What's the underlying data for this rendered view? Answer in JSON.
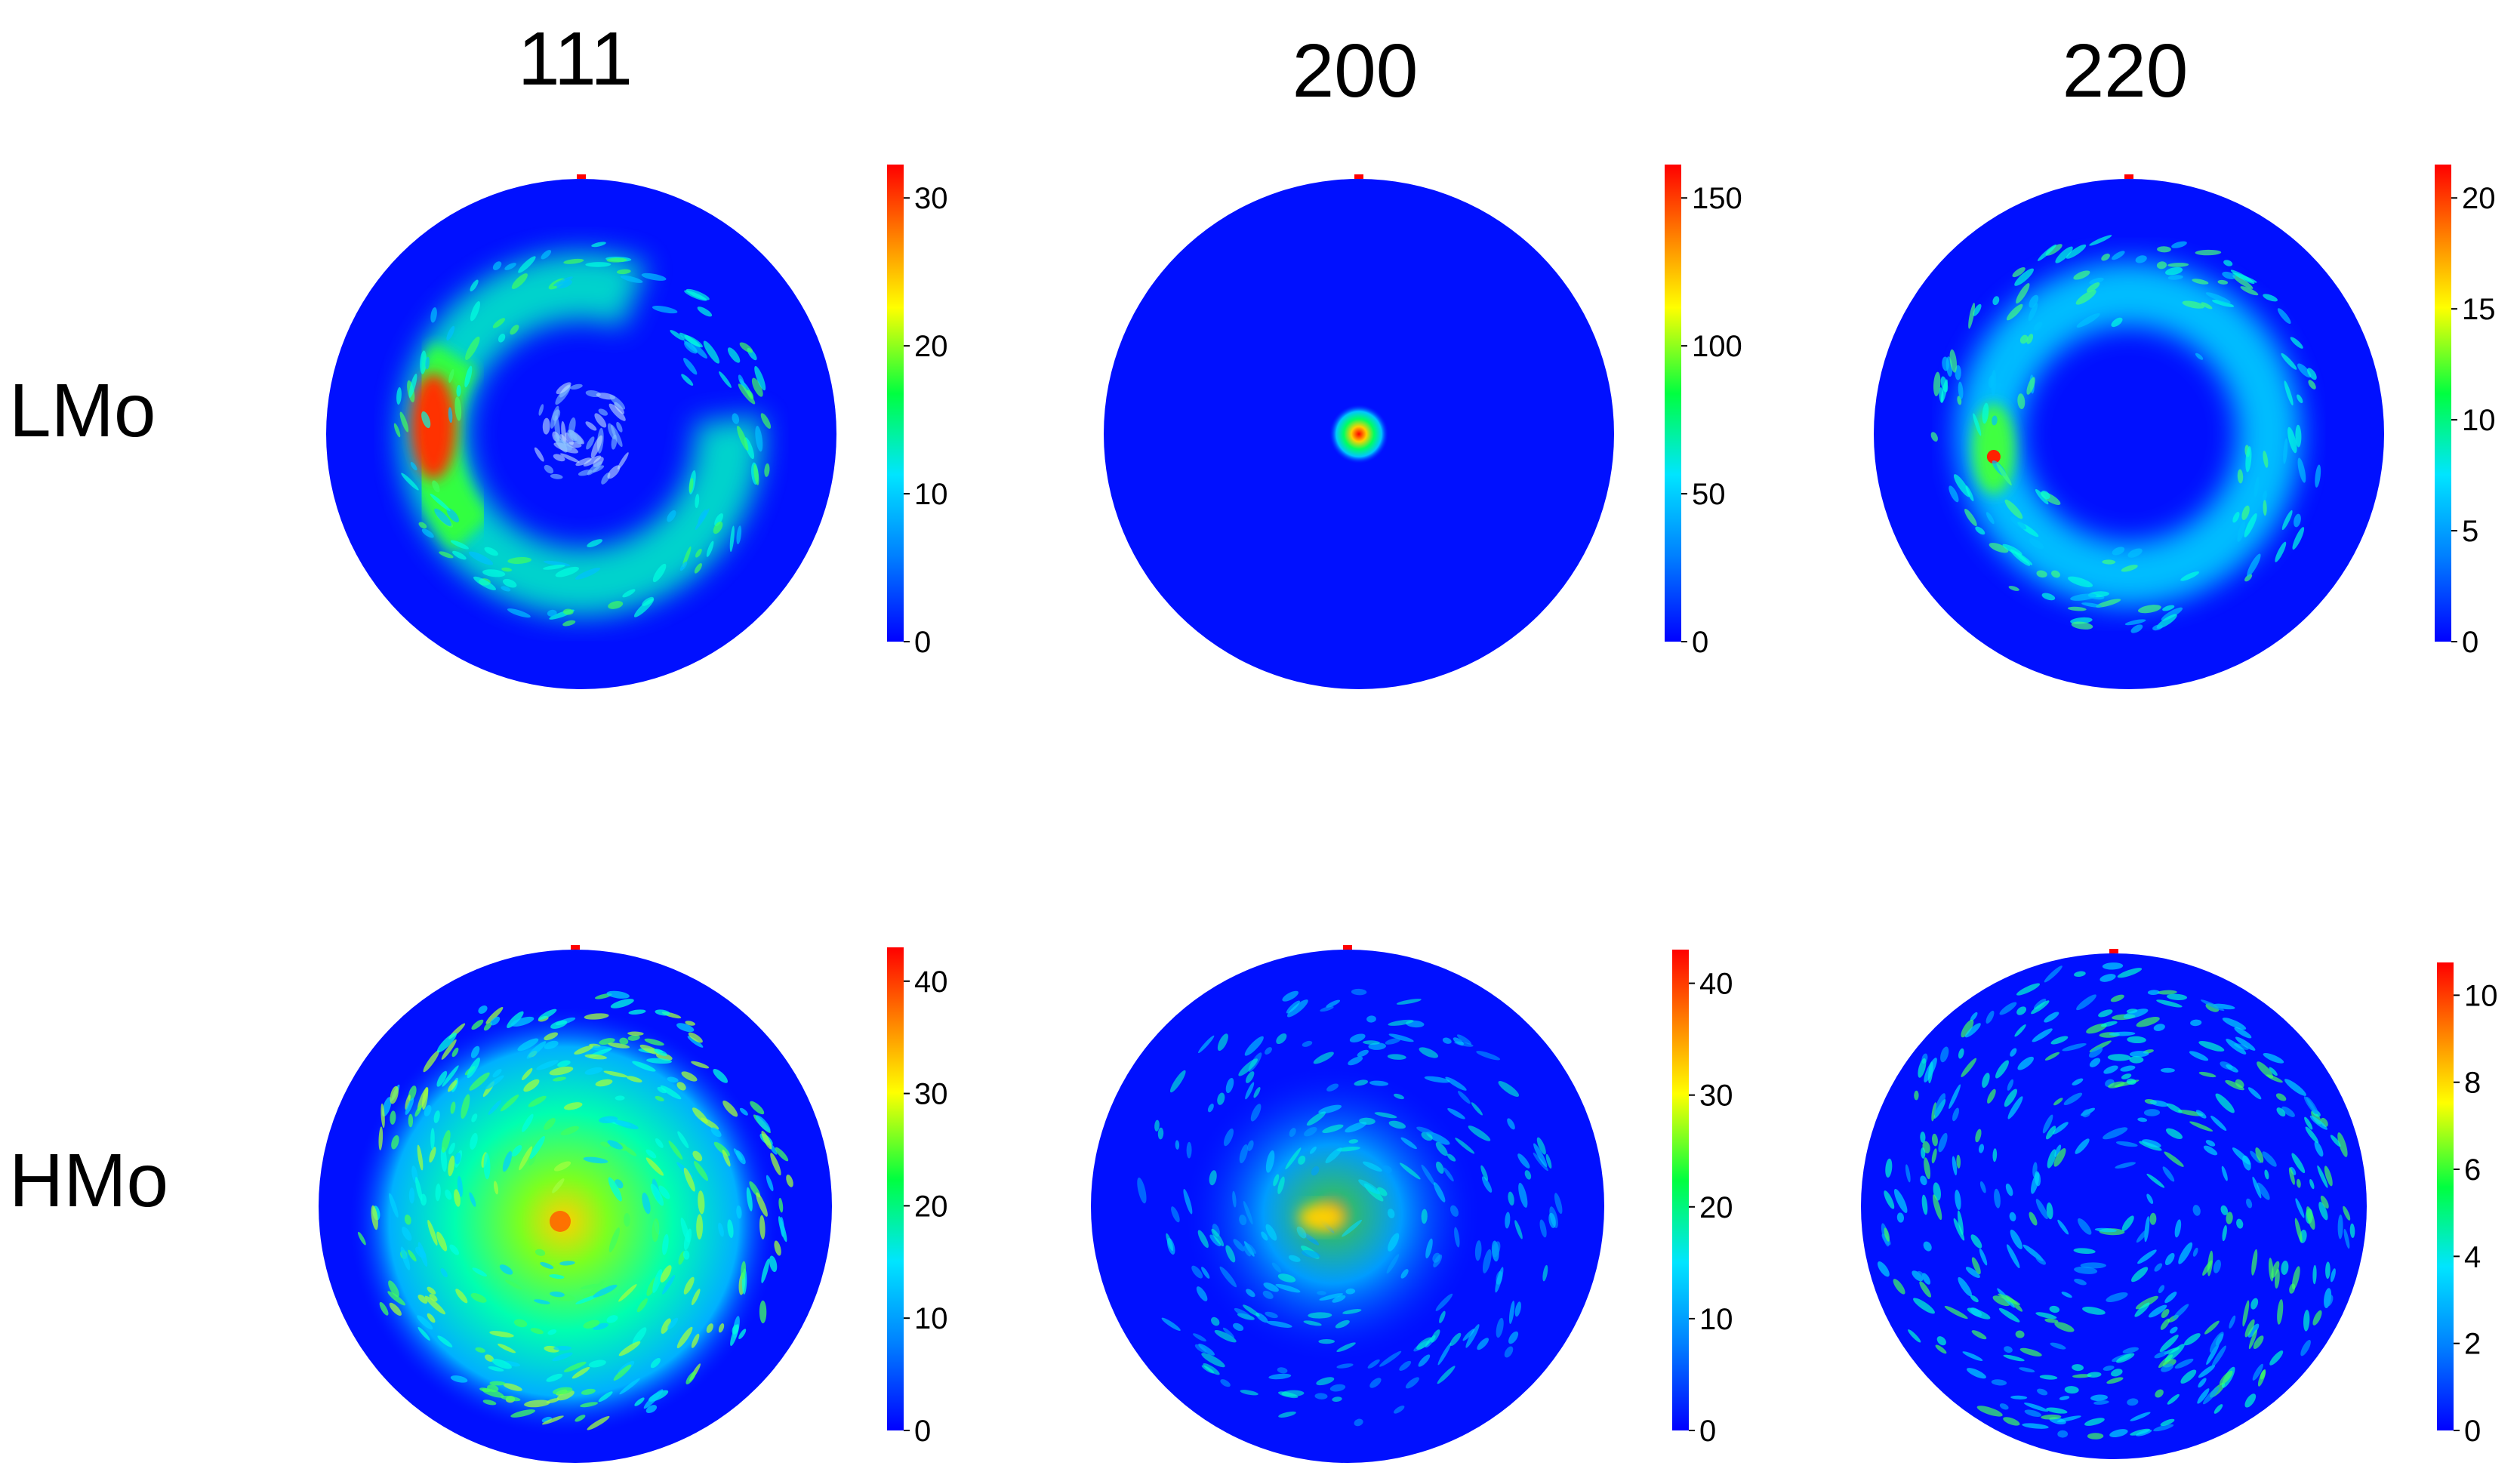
{
  "columns": [
    "111",
    "200",
    "220"
  ],
  "rows": [
    "LMo",
    "HMo"
  ],
  "colormap": [
    "#0000ff",
    "#0080ff",
    "#00e5ff",
    "#00ff40",
    "#ffff00",
    "#ff8000",
    "#ff0000"
  ],
  "panels": [
    {
      "row": "LMo",
      "column": "111",
      "pattern": "partial-ring",
      "colorbar_ticks": [
        "0",
        "10",
        "20",
        "30"
      ]
    },
    {
      "row": "LMo",
      "column": "200",
      "pattern": "center-spot",
      "colorbar_ticks": [
        "0",
        "50",
        "100",
        "150"
      ]
    },
    {
      "row": "LMo",
      "column": "220",
      "pattern": "ring",
      "colorbar_ticks": [
        "0",
        "5",
        "10",
        "15",
        "20"
      ]
    },
    {
      "row": "HMo",
      "column": "111",
      "pattern": "center-diffuse-strong",
      "colorbar_ticks": [
        "0",
        "10",
        "20",
        "30",
        "40"
      ]
    },
    {
      "row": "HMo",
      "column": "200",
      "pattern": "center-diffuse",
      "colorbar_ticks": [
        "0",
        "10",
        "20",
        "30",
        "40"
      ]
    },
    {
      "row": "HMo",
      "column": "220",
      "pattern": "uniform-speckle",
      "colorbar_ticks": [
        "0",
        "2",
        "4",
        "6",
        "8",
        "10"
      ]
    }
  ]
}
